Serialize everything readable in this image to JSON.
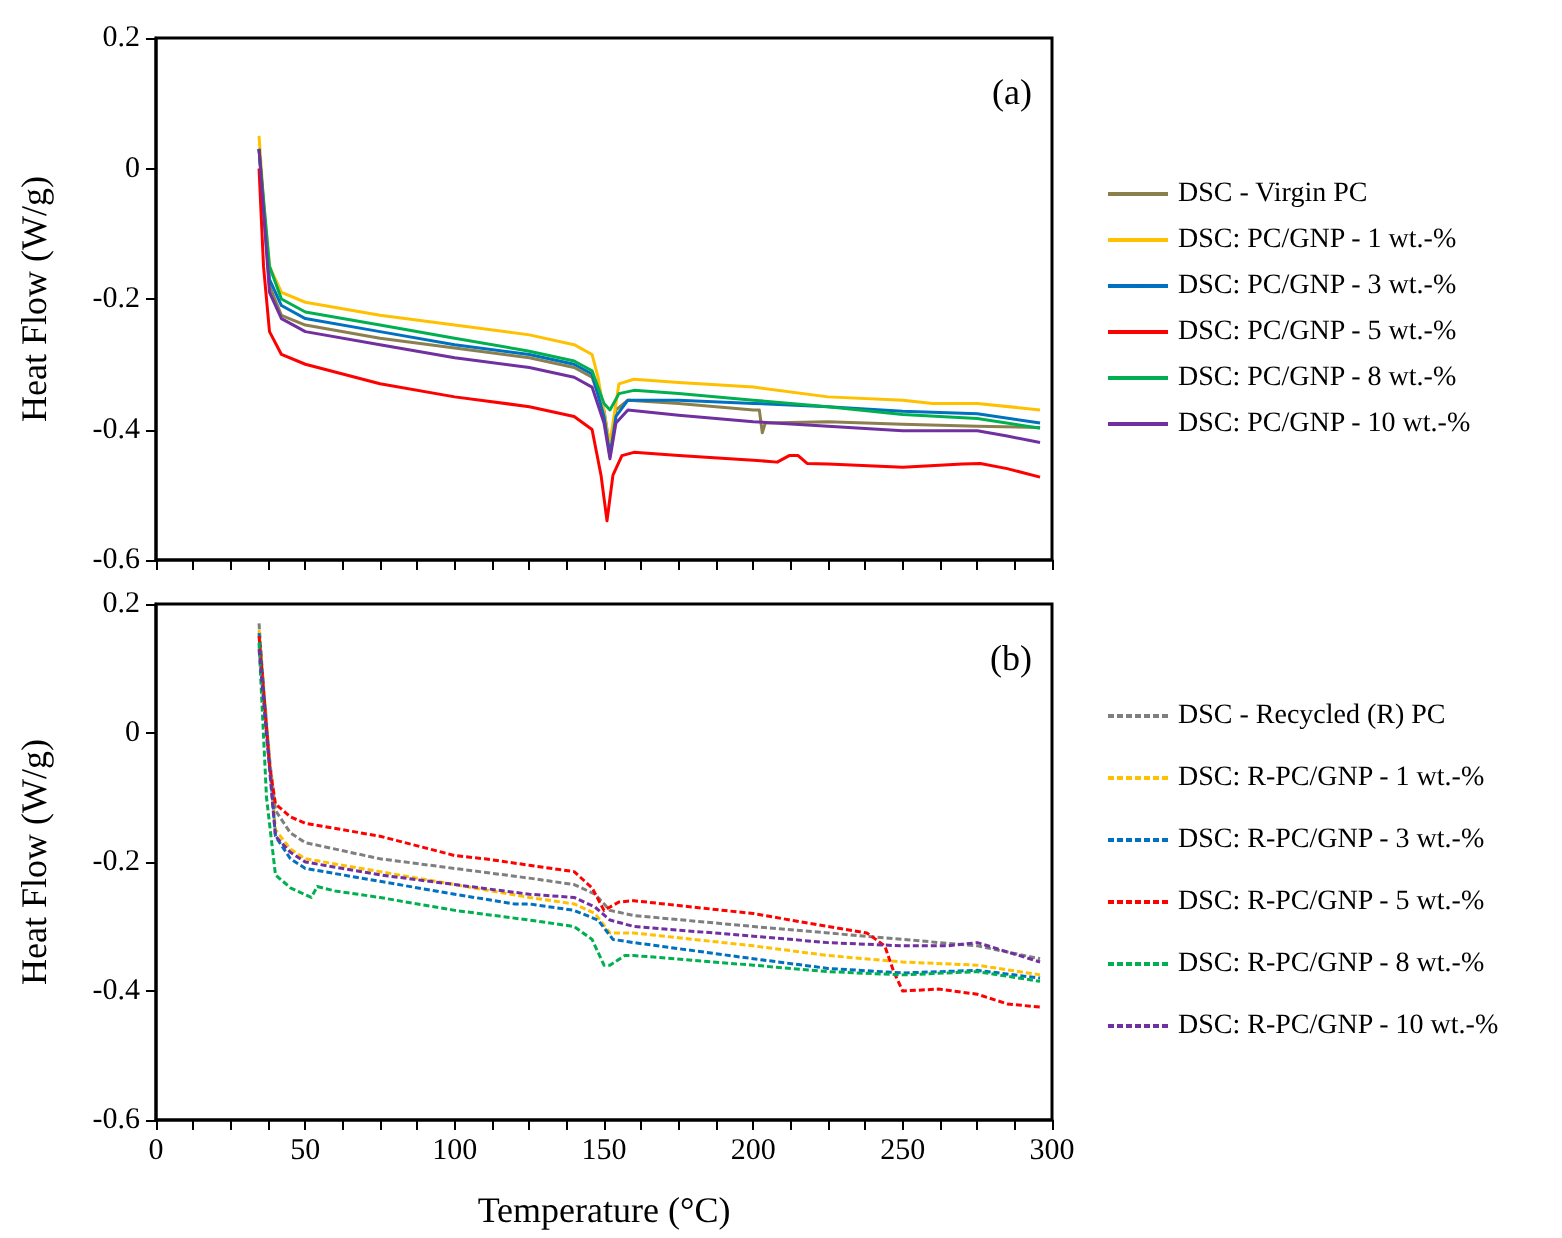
{
  "chart_data": [
    {
      "type": "line",
      "ylabel": "Heat Flow (W/g)",
      "annotations": [
        "(a)"
      ],
      "xlim": [
        0,
        300
      ],
      "xticks": [
        0,
        {
          "value": 12.5,
          "label": null
        },
        {
          "value": 25,
          "label": null
        },
        {
          "value": 37.5,
          "label": null
        },
        50,
        {
          "value": 62.5,
          "label": null
        },
        {
          "value": 75,
          "label": null
        },
        {
          "value": 87.5,
          "label": null
        },
        100,
        {
          "value": 112.5,
          "label": null
        },
        {
          "value": 125,
          "label": null
        },
        {
          "value": 137.5,
          "label": null
        },
        150,
        {
          "value": 162.5,
          "label": null
        },
        {
          "value": 175,
          "label": null
        },
        {
          "value": 187.5,
          "label": null
        },
        200,
        {
          "value": 212.5,
          "label": null
        },
        {
          "value": 225,
          "label": null
        },
        {
          "value": 237.5,
          "label": null
        },
        250,
        {
          "value": 262.5,
          "label": null
        },
        {
          "value": 275,
          "label": null
        },
        {
          "value": 287.5,
          "label": null
        },
        300
      ],
      "ylim": [
        -0.6,
        0.2
      ],
      "yticks": [
        -0.6,
        -0.4,
        -0.2,
        0,
        0.2
      ],
      "tick_labels": "y",
      "legend": "right",
      "grid": false,
      "line_style": "solid",
      "marker": "none",
      "series": [
        {
          "name": "DSC - Virgin PC",
          "color": "#8c7f4e",
          "x": [
            34.5,
            38,
            42,
            50,
            75,
            100,
            125,
            140,
            146,
            150,
            152,
            154,
            158,
            175,
            200,
            202,
            203,
            204,
            225,
            250,
            275,
            296
          ],
          "values": [
            0.03,
            -0.18,
            -0.225,
            -0.24,
            -0.26,
            -0.275,
            -0.29,
            -0.305,
            -0.32,
            -0.37,
            -0.43,
            -0.37,
            -0.355,
            -0.36,
            -0.37,
            -0.37,
            -0.405,
            -0.39,
            -0.388,
            -0.392,
            -0.395,
            -0.397
          ]
        },
        {
          "name": "DSC: PC/GNP - 1 wt.-%",
          "color": "#ffc000",
          "x": [
            34.5,
            36,
            38,
            42,
            50,
            75,
            100,
            125,
            140,
            146,
            148,
            151,
            152,
            155,
            160,
            175,
            200,
            225,
            250,
            260,
            275,
            296
          ],
          "values": [
            0.05,
            -0.05,
            -0.15,
            -0.19,
            -0.205,
            -0.225,
            -0.24,
            -0.255,
            -0.27,
            -0.285,
            -0.32,
            -0.4,
            -0.42,
            -0.33,
            -0.323,
            -0.328,
            -0.335,
            -0.35,
            -0.355,
            -0.36,
            -0.36,
            -0.37
          ]
        },
        {
          "name": "DSC: PC/GNP - 3 wt.-%",
          "color": "#0070c0",
          "x": [
            34.5,
            38,
            42,
            50,
            75,
            100,
            125,
            140,
            146,
            150,
            152,
            154,
            158,
            175,
            200,
            225,
            250,
            275,
            296
          ],
          "values": [
            0.03,
            -0.17,
            -0.21,
            -0.23,
            -0.25,
            -0.27,
            -0.285,
            -0.3,
            -0.315,
            -0.38,
            -0.44,
            -0.38,
            -0.355,
            -0.355,
            -0.36,
            -0.365,
            -0.372,
            -0.376,
            -0.39
          ]
        },
        {
          "name": "DSC: PC/GNP - 5 wt.-%",
          "color": "#ff0000",
          "x": [
            34.5,
            36,
            38,
            42,
            50,
            75,
            100,
            125,
            140,
            146,
            149,
            151,
            153,
            156,
            160,
            175,
            200,
            208,
            212,
            215,
            218,
            225,
            250,
            270,
            276,
            285,
            296
          ],
          "values": [
            0,
            -0.15,
            -0.25,
            -0.285,
            -0.3,
            -0.33,
            -0.35,
            -0.365,
            -0.38,
            -0.4,
            -0.47,
            -0.54,
            -0.47,
            -0.44,
            -0.435,
            -0.44,
            -0.447,
            -0.45,
            -0.44,
            -0.44,
            -0.452,
            -0.453,
            -0.458,
            -0.453,
            -0.452,
            -0.46,
            -0.473
          ]
        },
        {
          "name": "DSC: PC/GNP - 8 wt.-%",
          "color": "#00b050",
          "x": [
            34.5,
            38,
            42,
            50,
            75,
            100,
            125,
            140,
            146,
            150,
            152,
            155,
            160,
            175,
            200,
            225,
            250,
            275,
            296
          ],
          "values": [
            0.03,
            -0.15,
            -0.2,
            -0.22,
            -0.24,
            -0.26,
            -0.28,
            -0.295,
            -0.31,
            -0.36,
            -0.37,
            -0.345,
            -0.34,
            -0.345,
            -0.355,
            -0.365,
            -0.377,
            -0.383,
            -0.398
          ]
        },
        {
          "name": "DSC: PC/GNP - 10 wt.-%",
          "color": "#7030a0",
          "x": [
            34.5,
            38,
            42,
            50,
            75,
            100,
            125,
            140,
            146,
            150,
            152,
            154,
            158,
            175,
            200,
            225,
            250,
            275,
            285,
            296
          ],
          "values": [
            0.03,
            -0.19,
            -0.23,
            -0.25,
            -0.27,
            -0.29,
            -0.305,
            -0.32,
            -0.335,
            -0.39,
            -0.445,
            -0.39,
            -0.37,
            -0.378,
            -0.388,
            -0.395,
            -0.402,
            -0.402,
            -0.41,
            -0.42
          ]
        }
      ]
    },
    {
      "type": "line",
      "xlabel": "Temperature (°C)",
      "ylabel": "Heat Flow (W/g)",
      "annotations": [
        "(b)"
      ],
      "xlim": [
        0,
        300
      ],
      "xticks": [
        0,
        {
          "value": 12.5,
          "label": null
        },
        {
          "value": 25,
          "label": null
        },
        {
          "value": 37.5,
          "label": null
        },
        50,
        {
          "value": 62.5,
          "label": null
        },
        {
          "value": 75,
          "label": null
        },
        {
          "value": 87.5,
          "label": null
        },
        100,
        {
          "value": 112.5,
          "label": null
        },
        {
          "value": 125,
          "label": null
        },
        {
          "value": 137.5,
          "label": null
        },
        150,
        {
          "value": 162.5,
          "label": null
        },
        {
          "value": 175,
          "label": null
        },
        {
          "value": 187.5,
          "label": null
        },
        200,
        {
          "value": 212.5,
          "label": null
        },
        {
          "value": 225,
          "label": null
        },
        {
          "value": 237.5,
          "label": null
        },
        250,
        {
          "value": 262.5,
          "label": null
        },
        {
          "value": 275,
          "label": null
        },
        {
          "value": 287.5,
          "label": null
        },
        300
      ],
      "ylim": [
        -0.6,
        0.2
      ],
      "yticks": [
        -0.6,
        -0.4,
        -0.2,
        0,
        0.2
      ],
      "legend": "right",
      "grid": false,
      "line_style": "dashed",
      "marker": "none",
      "series": [
        {
          "name": "DSC - Recycled (R) PC",
          "color": "#7f7f7f",
          "x": [
            34.5,
            37,
            40,
            45,
            50,
            75,
            100,
            125,
            140,
            147,
            152,
            160,
            200,
            225,
            250,
            275,
            296
          ],
          "values": [
            0.17,
            0,
            -0.12,
            -0.155,
            -0.17,
            -0.195,
            -0.21,
            -0.225,
            -0.235,
            -0.25,
            -0.275,
            -0.283,
            -0.3,
            -0.31,
            -0.32,
            -0.33,
            -0.35
          ]
        },
        {
          "name": "DSC: R-PC/GNP - 1 wt.-%",
          "color": "#ffc000",
          "x": [
            34.5,
            40,
            45,
            50,
            75,
            100,
            125,
            140,
            147,
            152,
            160,
            200,
            225,
            250,
            275,
            296
          ],
          "values": [
            0.16,
            -0.15,
            -0.18,
            -0.195,
            -0.215,
            -0.235,
            -0.255,
            -0.265,
            -0.28,
            -0.31,
            -0.31,
            -0.33,
            -0.345,
            -0.355,
            -0.36,
            -0.375
          ]
        },
        {
          "name": "DSC: R-PC/GNP - 3 wt.-%",
          "color": "#0070c0",
          "x": [
            34.5,
            40,
            45,
            50,
            75,
            100,
            120,
            125,
            140,
            148,
            153,
            160,
            200,
            225,
            250,
            275,
            296
          ],
          "values": [
            0.155,
            -0.16,
            -0.195,
            -0.21,
            -0.23,
            -0.25,
            -0.265,
            -0.265,
            -0.275,
            -0.29,
            -0.32,
            -0.325,
            -0.35,
            -0.365,
            -0.372,
            -0.368,
            -0.38
          ]
        },
        {
          "name": "DSC: R-PC/GNP - 5 wt.-%",
          "color": "#ff0000",
          "x": [
            34.5,
            38,
            40,
            45,
            50,
            75,
            100,
            110,
            125,
            140,
            146,
            150,
            155,
            160,
            200,
            225,
            238,
            244,
            247,
            250,
            262,
            275,
            285,
            296
          ],
          "values": [
            0.15,
            -0.05,
            -0.11,
            -0.13,
            -0.14,
            -0.16,
            -0.19,
            -0.195,
            -0.205,
            -0.215,
            -0.24,
            -0.275,
            -0.262,
            -0.26,
            -0.28,
            -0.3,
            -0.31,
            -0.33,
            -0.37,
            -0.4,
            -0.397,
            -0.405,
            -0.42,
            -0.425
          ]
        },
        {
          "name": "DSC: R-PC/GNP - 8 wt.-%",
          "color": "#00b050",
          "x": [
            34.5,
            37,
            40,
            45,
            52,
            54,
            60,
            75,
            100,
            125,
            140,
            146,
            150,
            152,
            157,
            160,
            200,
            225,
            250,
            275,
            296
          ],
          "values": [
            0.14,
            -0.1,
            -0.22,
            -0.24,
            -0.255,
            -0.238,
            -0.245,
            -0.255,
            -0.275,
            -0.29,
            -0.3,
            -0.32,
            -0.36,
            -0.36,
            -0.345,
            -0.345,
            -0.36,
            -0.37,
            -0.375,
            -0.37,
            -0.385
          ]
        },
        {
          "name": "DSC: R-PC/GNP - 10 wt.-%",
          "color": "#7030a0",
          "x": [
            34.5,
            40,
            45,
            50,
            75,
            100,
            125,
            140,
            147,
            152,
            160,
            200,
            225,
            250,
            265,
            275,
            296
          ],
          "values": [
            0.13,
            -0.16,
            -0.185,
            -0.2,
            -0.22,
            -0.235,
            -0.25,
            -0.255,
            -0.27,
            -0.29,
            -0.3,
            -0.315,
            -0.325,
            -0.33,
            -0.33,
            -0.325,
            -0.355
          ]
        }
      ]
    }
  ]
}
